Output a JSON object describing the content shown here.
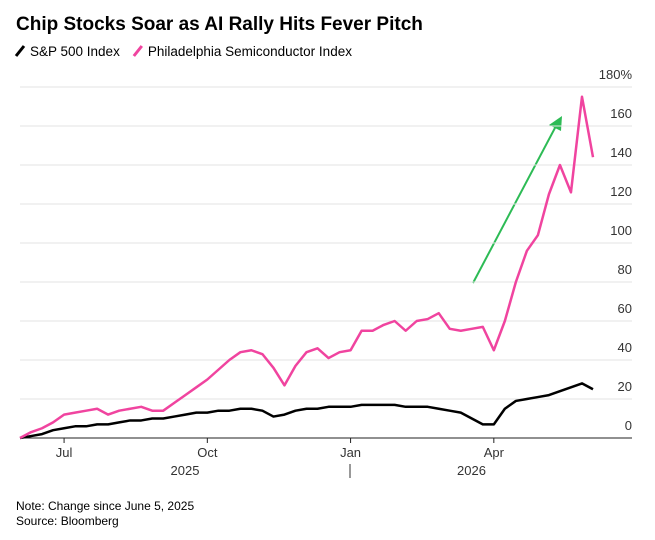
{
  "chart_data": {
    "type": "line",
    "title": "Chip Stocks Soar as AI Rally Hits Fever Pitch",
    "note": "Note: Change since June 5, 2025",
    "source": "Source: Bloomberg",
    "categories": [
      null,
      null,
      null,
      null,
      "Jul",
      null,
      null,
      null,
      null,
      null,
      null,
      null,
      null,
      null,
      null,
      null,
      null,
      "Oct",
      null,
      null,
      null,
      null,
      null,
      null,
      null,
      null,
      null,
      null,
      null,
      null,
      "Jan",
      null,
      null,
      null,
      null,
      null,
      null,
      null,
      null,
      null,
      null,
      null,
      null,
      "Apr",
      null,
      null,
      null,
      null,
      null,
      null,
      null,
      null,
      null
    ],
    "x_year_labels": [
      "2025",
      "2026"
    ],
    "series": [
      {
        "name": "S&P 500 Index",
        "color": "#000000",
        "values": [
          0,
          1,
          2,
          4,
          5,
          6,
          6,
          7,
          7,
          8,
          9,
          9,
          10,
          10,
          11,
          12,
          13,
          13,
          14,
          14,
          15,
          15,
          14,
          11,
          12,
          14,
          15,
          15,
          16,
          16,
          16,
          17,
          17,
          17,
          17,
          16,
          16,
          16,
          15,
          14,
          13,
          10,
          7,
          7,
          15,
          19,
          20,
          21,
          22,
          24,
          26,
          28,
          25
        ]
      },
      {
        "name": "Philadelphia Semiconductor Index",
        "color": "#f0449f",
        "values": [
          0,
          3,
          5,
          8,
          12,
          13,
          14,
          15,
          12,
          14,
          15,
          16,
          14,
          14,
          18,
          22,
          26,
          30,
          35,
          40,
          44,
          45,
          43,
          36,
          27,
          37,
          44,
          46,
          41,
          44,
          45,
          55,
          55,
          58,
          60,
          55,
          60,
          61,
          64,
          56,
          55,
          56,
          57,
          45,
          60,
          80,
          96,
          104,
          125,
          140,
          126,
          175,
          144
        ]
      }
    ],
    "ylim": [
      0,
      180
    ],
    "yticks": [
      0,
      20,
      40,
      60,
      80,
      100,
      120,
      140,
      160,
      {
        "value": 180,
        "label": "180%"
      }
    ],
    "grid": true
  }
}
